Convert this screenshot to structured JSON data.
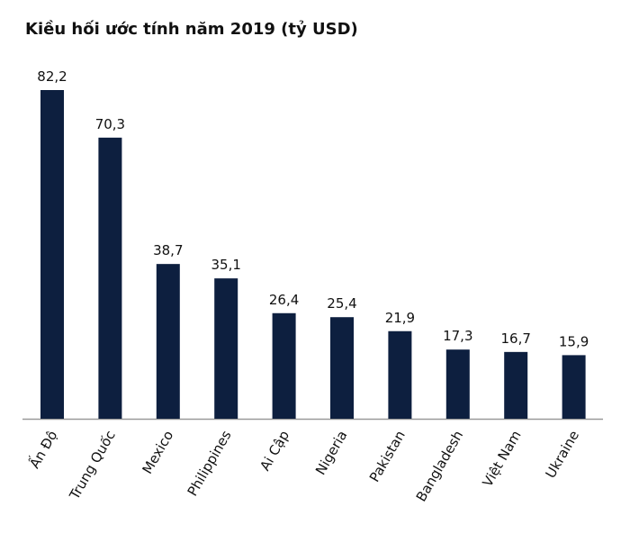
{
  "chart_data": {
    "type": "bar",
    "title": "Kiều hối ước tính năm 2019 (tỷ USD)",
    "categories": [
      "Ấn Độ",
      "Trung Quốc",
      "Mexico",
      "Philippines",
      "Ai Cập",
      "Nigeria",
      "Pakistan",
      "Bangladesh",
      "Việt Nam",
      "Ukraine"
    ],
    "values": [
      82.2,
      70.3,
      38.7,
      35.1,
      26.4,
      25.4,
      21.9,
      17.3,
      16.7,
      15.9
    ],
    "value_labels": [
      "82,2",
      "70,3",
      "38,7",
      "35,1",
      "26,4",
      "25,4",
      "21,9",
      "17,3",
      "16,7",
      "15,9"
    ],
    "color": "#0d1f3f"
  }
}
